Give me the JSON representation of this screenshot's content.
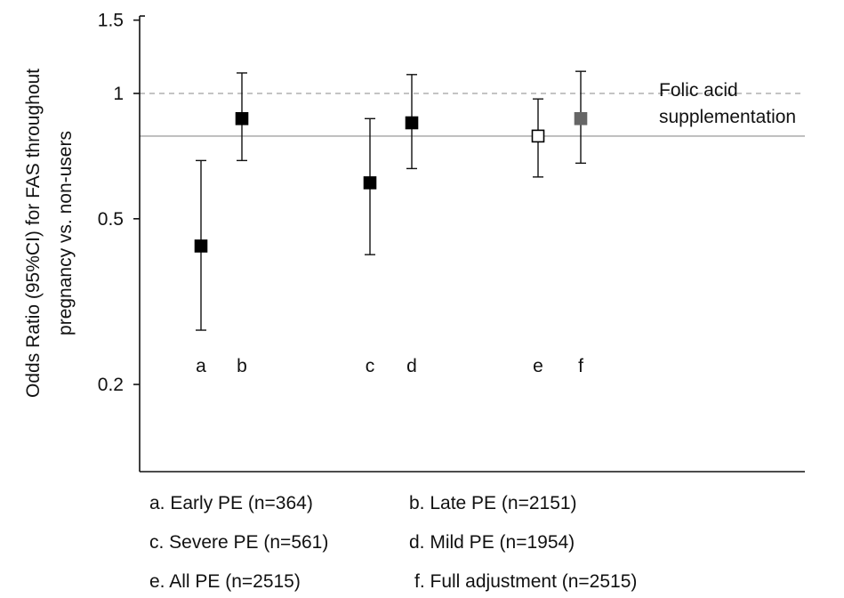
{
  "chart_data": {
    "type": "scatter",
    "title": "",
    "ylabel_line1": "Odds Ratio (95%CI)  for FAS throughout",
    "ylabel_line2": "pregnancy vs. non-users",
    "xlabel": "",
    "yscale": "log",
    "ylim": [
      0.15,
      1.7
    ],
    "yticks": [
      {
        "value": 0.2,
        "label": "0.2"
      },
      {
        "value": 0.5,
        "label": "0.5"
      },
      {
        "value": 1,
        "label": "1"
      },
      {
        "value": 1.5,
        "label": "1.5"
      }
    ],
    "reference_line": {
      "value": 1,
      "style": "dashed"
    },
    "pooled_line": {
      "value": 0.79,
      "style": "solid"
    },
    "annotation_line1": "Folic acid",
    "annotation_line2": "supplementation",
    "points": [
      {
        "label": "a",
        "or": 0.43,
        "lower": 0.27,
        "upper": 0.69,
        "marker": "filled-black"
      },
      {
        "label": "b",
        "or": 0.87,
        "lower": 0.69,
        "upper": 1.12,
        "marker": "filled-black"
      },
      {
        "label": "c",
        "or": 0.61,
        "lower": 0.41,
        "upper": 0.87,
        "marker": "filled-black"
      },
      {
        "label": "d",
        "or": 0.85,
        "lower": 0.66,
        "upper": 1.11,
        "marker": "filled-black"
      },
      {
        "label": "e",
        "or": 0.79,
        "lower": 0.63,
        "upper": 0.97,
        "marker": "open"
      },
      {
        "label": "f",
        "or": 0.87,
        "lower": 0.68,
        "upper": 1.13,
        "marker": "filled-gray"
      }
    ],
    "legend": [
      "a. Early PE (n=364)",
      "b. Late PE (n=2151)",
      "c. Severe PE (n=561)",
      "d. Mild PE (n=1954)",
      "e.  All PE (n=2515)",
      "f. Full adjustment (n=2515)"
    ]
  }
}
